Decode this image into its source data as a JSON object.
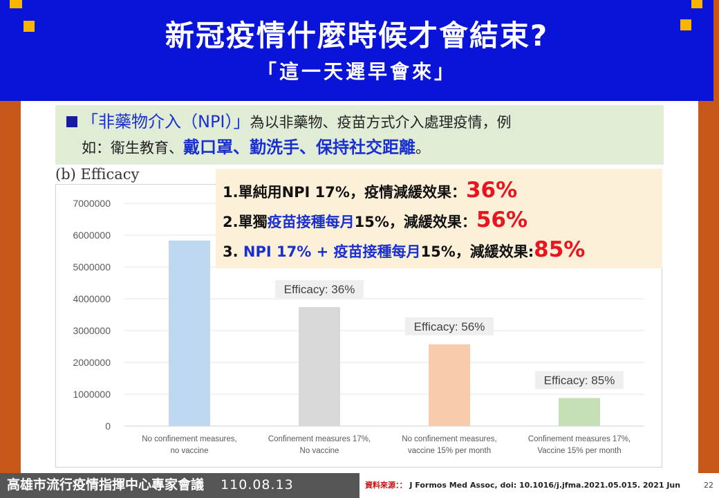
{
  "header": {
    "title": "新冠疫情什麼時候才會結束?",
    "subtitle": "「這一天遲早會來」"
  },
  "npi": {
    "term": "「非藥物介入（NPI）」",
    "line1_rest": "為以非藥物、疫苗方式介入處理疫情，例",
    "line2_prefix": "如：衛生教育、",
    "line2_emphasis": "戴口罩、勤洗手、保持社交距離",
    "line2_end": "。"
  },
  "results": [
    {
      "prefix": "1.",
      "blue": "",
      "plain": "單純用NPI  17%，疫情減緩效果：",
      "value": "36%"
    },
    {
      "prefix": "2.",
      "plain_a": "單獨",
      "blue": "疫苗接種每月",
      "plain": "15%，減緩效果：",
      "value": "56%"
    },
    {
      "prefix": "3. ",
      "blue": "NPI 17% + ",
      "blue2": "疫苗接種每月",
      "plain": "15%，減緩效果:",
      "value": "85%"
    }
  ],
  "chart_data": {
    "type": "bar",
    "title": "(b) Efficacy",
    "categories": [
      [
        "No confinement measures,",
        "no vaccine"
      ],
      [
        "Confinement measures 17%,",
        "No vaccine"
      ],
      [
        "No confinement measures,",
        "vaccine 15% per month"
      ],
      [
        "Confinement measures 17%,",
        "Vaccine 15% per month"
      ]
    ],
    "values": [
      5830000,
      3740000,
      2570000,
      880000
    ],
    "bar_colors": [
      "#bdd7ee",
      "#d9d9d9",
      "#f8cbad",
      "#c5e0b4"
    ],
    "annotations": [
      "",
      "Efficacy: 36%",
      "Efficacy: 56%",
      "Efficacy: 85%"
    ],
    "yticks": [
      "0",
      "1000000",
      "2000000",
      "3000000",
      "4000000",
      "5000000",
      "6000000",
      "7000000"
    ],
    "ylim": [
      0,
      7000000
    ],
    "grid": true
  },
  "footer": {
    "org": "高雄市流行疫情指揮中心專家會議",
    "date": "110.08.13",
    "source_label": "資料來源：：",
    "source": "J Formos Med Assoc,  doi: 10.1016/j.jfma.2021.05.015.  2021 Jun",
    "page": "22"
  }
}
